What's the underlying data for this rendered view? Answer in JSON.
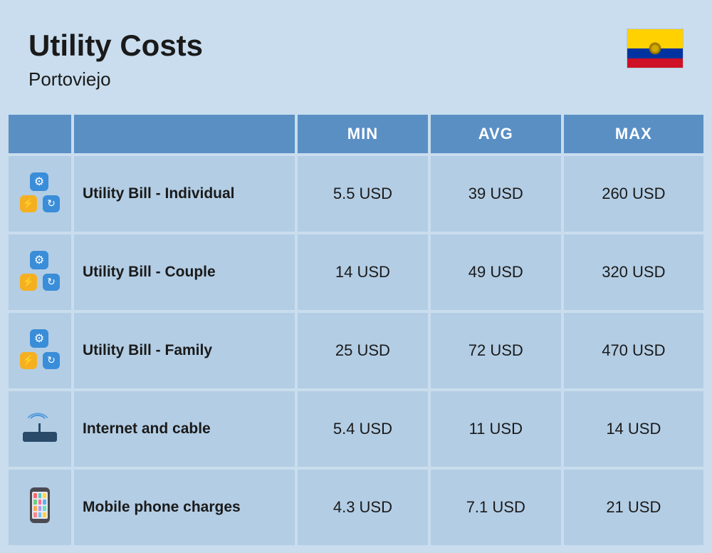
{
  "header": {
    "title": "Utility Costs",
    "subtitle": "Portoviejo",
    "flag": {
      "country": "Ecuador",
      "stripes": [
        "#ffd100",
        "#0033a0",
        "#ce1126"
      ]
    }
  },
  "table": {
    "columns": {
      "min": "MIN",
      "avg": "AVG",
      "max": "MAX"
    },
    "header_bg": "#5a8fc4",
    "header_text_color": "#ffffff",
    "cell_bg": "#b3cde4",
    "page_bg": "#c9ddee",
    "rows": [
      {
        "icon": "utility-icon",
        "label": "Utility Bill - Individual",
        "min": "5.5 USD",
        "avg": "39 USD",
        "max": "260 USD"
      },
      {
        "icon": "utility-icon",
        "label": "Utility Bill - Couple",
        "min": "14 USD",
        "avg": "49 USD",
        "max": "320 USD"
      },
      {
        "icon": "utility-icon",
        "label": "Utility Bill - Family",
        "min": "25 USD",
        "avg": "72 USD",
        "max": "470 USD"
      },
      {
        "icon": "router-icon",
        "label": "Internet and cable",
        "min": "5.4 USD",
        "avg": "11 USD",
        "max": "14 USD"
      },
      {
        "icon": "phone-icon",
        "label": "Mobile phone charges",
        "min": "4.3 USD",
        "avg": "7.1 USD",
        "max": "21 USD"
      }
    ]
  }
}
